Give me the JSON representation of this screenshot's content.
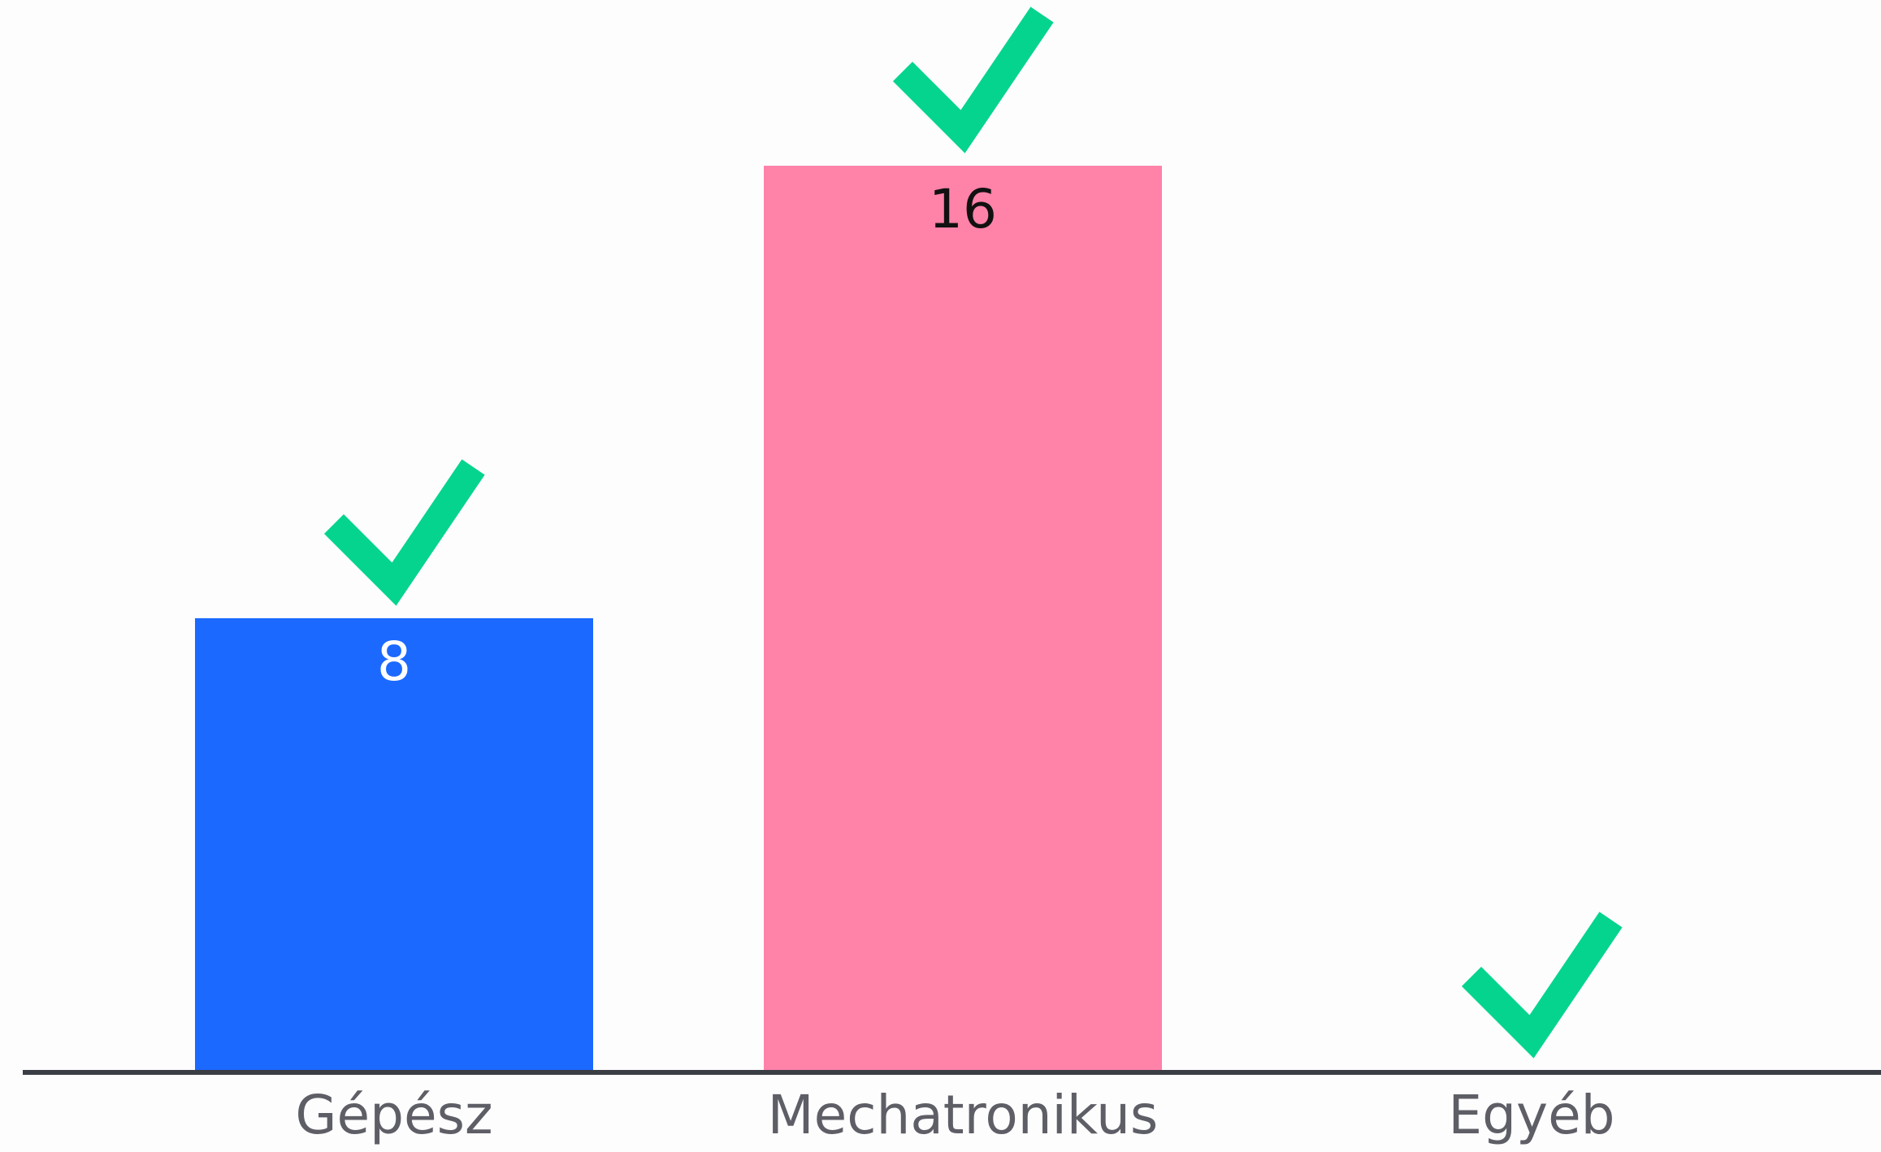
{
  "chart_data": {
    "type": "bar",
    "categories": [
      "Gépész",
      "Mechatronikus",
      "Egyéb"
    ],
    "values": [
      8,
      16,
      0
    ],
    "correct": [
      true,
      true,
      true
    ],
    "bar_colors": [
      "#1B69FF",
      "#FF82A9",
      "#6BDFBB"
    ],
    "value_label_colors": [
      "#FFFFFF",
      "#111111",
      "#111111"
    ],
    "check_icon_color": "#05D48F",
    "axis_color": "#3B3D45",
    "ylim": [
      0,
      16
    ],
    "grid": false,
    "legend": "none"
  }
}
